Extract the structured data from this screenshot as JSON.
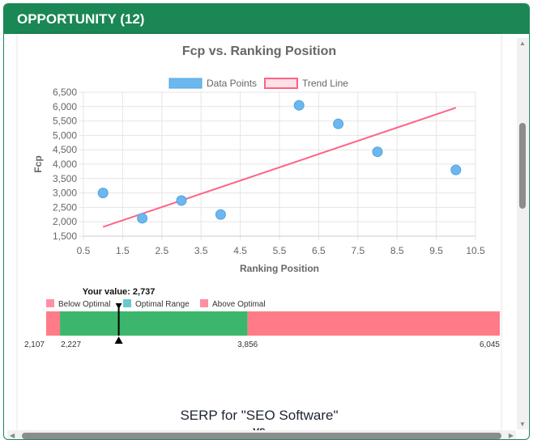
{
  "header": {
    "title": "OPPORTUNITY (12)"
  },
  "chart_data": {
    "type": "scatter",
    "title": "Fcp vs. Ranking Position",
    "xlabel": "Ranking Position",
    "ylabel": "Fcp",
    "xlim": [
      0.5,
      10.5
    ],
    "ylim": [
      1500,
      6500
    ],
    "xticks": [
      "0.5",
      "1.5",
      "2.5",
      "3.5",
      "4.5",
      "5.5",
      "6.5",
      "7.5",
      "8.5",
      "9.5",
      "10.5"
    ],
    "yticks": [
      "6,500",
      "6,000",
      "5,500",
      "5,000",
      "4,500",
      "4,000",
      "3,500",
      "3,000",
      "2,500",
      "2,000",
      "1,500"
    ],
    "grid": true,
    "legend_position": "top",
    "series": [
      {
        "name": "Data Points",
        "color": "#6cb8ee",
        "points": [
          [
            1,
            3000
          ],
          [
            2,
            2120
          ],
          [
            3,
            2737
          ],
          [
            4,
            2250
          ],
          [
            6,
            6045
          ],
          [
            7,
            5400
          ],
          [
            8,
            4430
          ],
          [
            10,
            3800
          ]
        ]
      },
      {
        "name": "Trend Line",
        "color": "#ff6384",
        "line": [
          [
            1,
            1820
          ],
          [
            10,
            5960
          ]
        ]
      }
    ]
  },
  "range_bar": {
    "your_value_label": "Your value: 2,737",
    "your_value": 2737,
    "min": 2107,
    "optimal_low": 2227,
    "optimal_high": 3856,
    "max": 6045,
    "labels": [
      "2,107",
      "2,227",
      "3,856",
      "6,045"
    ],
    "legend": [
      {
        "label": "Below Optimal",
        "color": "#ff8fa3"
      },
      {
        "label": "Optimal Range",
        "color": "#6cc9c9"
      },
      {
        "label": "Above Optimal",
        "color": "#ff8fa3"
      }
    ],
    "colors": {
      "below": "#ff7b87",
      "optimal": "#3cb66d",
      "above": "#ff7b87"
    }
  },
  "serp": {
    "title": "SERP for \"SEO Software\"",
    "subtitle": "vs"
  }
}
